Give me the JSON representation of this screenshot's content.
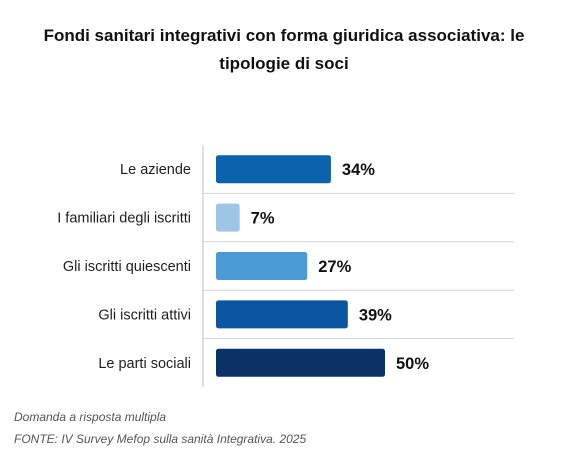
{
  "chart_data": {
    "type": "bar",
    "orientation": "horizontal",
    "title": "Fondi sanitari integrativi con forma giuridica associativa: le tipologie di soci",
    "categories": [
      "Le aziende",
      "I familiari degli iscritti",
      "Gli iscritti quiescenti",
      "Gli iscritti attivi",
      "Le parti sociali"
    ],
    "values": [
      34,
      7,
      27,
      39,
      50
    ],
    "value_labels": [
      "34%",
      "7%",
      "27%",
      "39%",
      "50%"
    ],
    "colors": [
      "#0b63ad",
      "#9ec5e6",
      "#4a9ad4",
      "#0b55a3",
      "#0a3267"
    ],
    "xlim": [
      0,
      100
    ],
    "grid": false,
    "legend": "none"
  },
  "footer": {
    "note": "Domanda a risposta multipla",
    "source": "FONTE: IV Survey Mefop sulla sanità Integrativa. 2025"
  }
}
